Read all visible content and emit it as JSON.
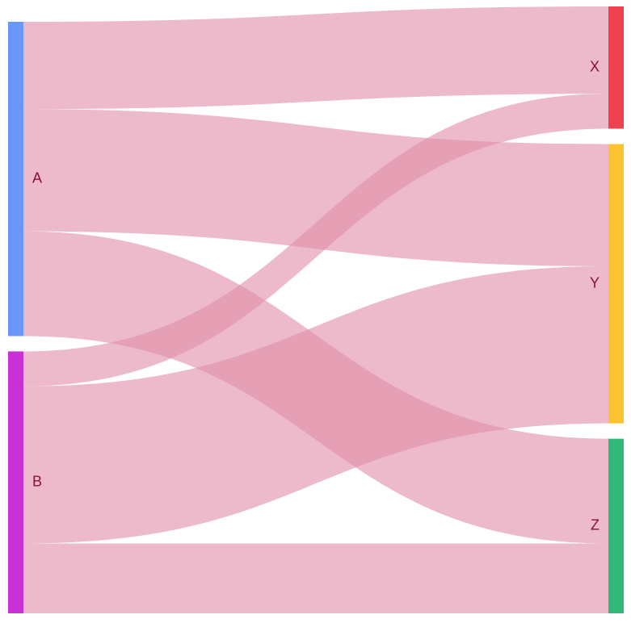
{
  "chart_data": {
    "type": "sankey",
    "nodes": [
      {
        "id": "A",
        "label": "A",
        "color": "#6a96ff"
      },
      {
        "id": "B",
        "label": "B",
        "color": "#c831d3"
      },
      {
        "id": "X",
        "label": "X",
        "color": "#ef4150"
      },
      {
        "id": "Y",
        "label": "Y",
        "color": "#fbc232"
      },
      {
        "id": "Z",
        "label": "Z",
        "color": "#31b87a"
      }
    ],
    "links": [
      {
        "source": "A",
        "target": "X",
        "value": 5
      },
      {
        "source": "A",
        "target": "Y",
        "value": 7
      },
      {
        "source": "A",
        "target": "Z",
        "value": 6
      },
      {
        "source": "B",
        "target": "X",
        "value": 2
      },
      {
        "source": "B",
        "target": "Y",
        "value": 9
      },
      {
        "source": "B",
        "target": "Z",
        "value": 4
      }
    ],
    "link_color": "#e190aa",
    "link_opacity": 0.62
  }
}
